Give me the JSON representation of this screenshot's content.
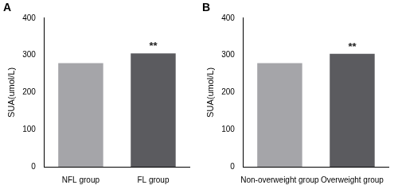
{
  "chart_data": [
    {
      "type": "bar",
      "title": "A",
      "y_label": "SUA(umol/L)",
      "categories": [
        "NFL group",
        "FL group"
      ],
      "values": [
        279,
        305
      ],
      "colors": [
        "#a5a5a9",
        "#5b5b5f"
      ],
      "ylim": [
        0,
        400
      ],
      "yticks": [
        0,
        100,
        200,
        300,
        400
      ],
      "grid": false,
      "annotations": [
        {
          "category": "FL group",
          "text": "**"
        }
      ]
    },
    {
      "type": "bar",
      "title": "B",
      "y_label": "SUA(umol/L)",
      "categories": [
        "Non-overweight group",
        "Overweight group"
      ],
      "values": [
        279,
        304
      ],
      "colors": [
        "#a5a5a9",
        "#5b5b5f"
      ],
      "ylim": [
        0,
        400
      ],
      "yticks": [
        0,
        100,
        200,
        300,
        400
      ],
      "grid": false,
      "annotations": [
        {
          "category": "Overweight group",
          "text": "**"
        }
      ]
    }
  ]
}
